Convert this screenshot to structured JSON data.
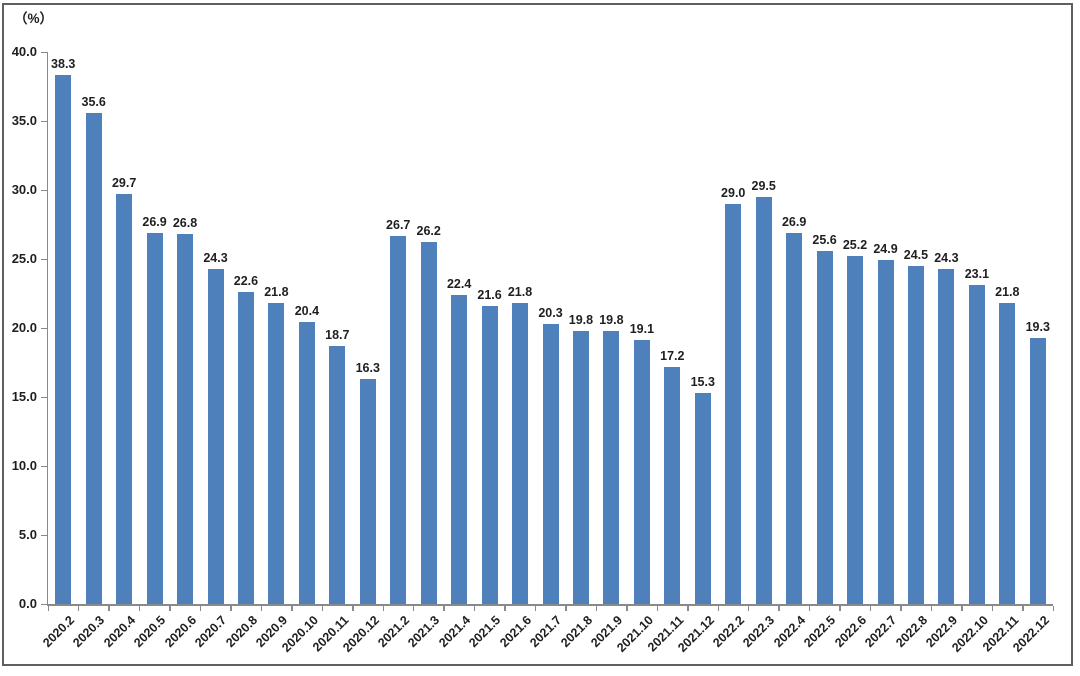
{
  "chart_data": {
    "type": "bar",
    "title": "",
    "unit_label": "（%）",
    "categories": [
      "2020.2",
      "2020.3",
      "2020.4",
      "2020.5",
      "2020.6",
      "2020.7",
      "2020.8",
      "2020.9",
      "2020.10",
      "2020.11",
      "2020.12",
      "2021.2",
      "2021.3",
      "2021.4",
      "2021.5",
      "2021.6",
      "2021.7",
      "2021.8",
      "2021.9",
      "2021.10",
      "2021.11",
      "2021.12",
      "2022.2",
      "2022.3",
      "2022.4",
      "2022.5",
      "2022.6",
      "2022.7",
      "2022.8",
      "2022.9",
      "2022.10",
      "2022.11",
      "2022.12"
    ],
    "values": [
      38.3,
      35.6,
      29.7,
      26.9,
      26.8,
      24.3,
      22.6,
      21.8,
      20.4,
      18.7,
      16.3,
      26.7,
      26.2,
      22.4,
      21.6,
      21.8,
      20.3,
      19.8,
      19.8,
      19.1,
      17.2,
      15.3,
      29.0,
      29.5,
      26.9,
      25.6,
      25.2,
      24.9,
      24.5,
      24.3,
      23.1,
      21.8,
      19.3
    ],
    "value_label_decimals": 1,
    "xlabel": "",
    "ylabel": "",
    "ylim": [
      0,
      40
    ],
    "ytick_step": 5,
    "ytick_labels": [
      "0.0",
      "5.0",
      "10.0",
      "15.0",
      "20.0",
      "25.0",
      "30.0",
      "35.0",
      "40.0"
    ],
    "x_label_rotation_deg": -45,
    "grid": false,
    "legend_position": "none",
    "bar_color": "#4E80BC",
    "axis_color": "#898989",
    "text_color": "#1f1f1f",
    "border_color": "#5f5f5f"
  }
}
